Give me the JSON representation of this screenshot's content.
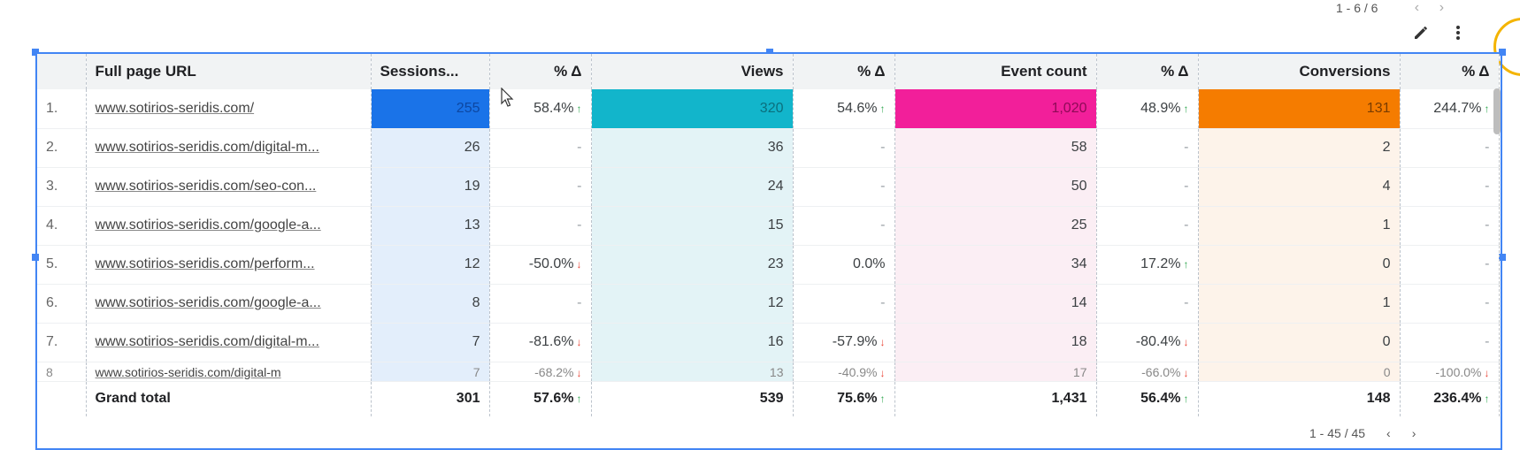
{
  "pagination_top": {
    "label": "1 - 6 / 6",
    "prev": "‹",
    "next": "›"
  },
  "toolbar": {
    "edit_icon": "pencil-icon",
    "menu_icon": "more-vert-icon"
  },
  "table": {
    "headers": {
      "url": "Full page URL",
      "sessions": "Sessions...",
      "sessions_delta": "% Δ",
      "views": "Views",
      "views_delta": "% Δ",
      "events": "Event count",
      "events_delta": "% Δ",
      "conversions": "Conversions",
      "conversions_delta": "% Δ"
    },
    "rows": [
      {
        "idx": "1.",
        "url": "www.sotirios-seridis.com/",
        "sessions": "255",
        "sessions_delta": "58.4%",
        "sessions_dir": "up",
        "views": "320",
        "views_delta": "54.6%",
        "views_dir": "up",
        "events": "1,020",
        "events_delta": "48.9%",
        "events_dir": "up",
        "conversions": "131",
        "conversions_delta": "244.7%",
        "conversions_dir": "up"
      },
      {
        "idx": "2.",
        "url": "www.sotirios-seridis.com/digital-m...",
        "sessions": "26",
        "sessions_delta": "-",
        "views": "36",
        "views_delta": "-",
        "events": "58",
        "events_delta": "-",
        "conversions": "2",
        "conversions_delta": "-"
      },
      {
        "idx": "3.",
        "url": "www.sotirios-seridis.com/seo-con...",
        "sessions": "19",
        "sessions_delta": "-",
        "views": "24",
        "views_delta": "-",
        "events": "50",
        "events_delta": "-",
        "conversions": "4",
        "conversions_delta": "-"
      },
      {
        "idx": "4.",
        "url": "www.sotirios-seridis.com/google-a...",
        "sessions": "13",
        "sessions_delta": "-",
        "views": "15",
        "views_delta": "-",
        "events": "25",
        "events_delta": "-",
        "conversions": "1",
        "conversions_delta": "-"
      },
      {
        "idx": "5.",
        "url": "www.sotirios-seridis.com/perform...",
        "sessions": "12",
        "sessions_delta": "-50.0%",
        "sessions_dir": "down",
        "views": "23",
        "views_delta": "0.0%",
        "events": "34",
        "events_delta": "17.2%",
        "events_dir": "up",
        "conversions": "0",
        "conversions_delta": "-"
      },
      {
        "idx": "6.",
        "url": "www.sotirios-seridis.com/google-a...",
        "sessions": "8",
        "sessions_delta": "-",
        "views": "12",
        "views_delta": "-",
        "events": "14",
        "events_delta": "-",
        "conversions": "1",
        "conversions_delta": "-"
      },
      {
        "idx": "7.",
        "url": "www.sotirios-seridis.com/digital-m...",
        "sessions": "7",
        "sessions_delta": "-81.6%",
        "sessions_dir": "down",
        "views": "16",
        "views_delta": "-57.9%",
        "views_dir": "down",
        "events": "18",
        "events_delta": "-80.4%",
        "events_dir": "down",
        "conversions": "0",
        "conversions_delta": "-"
      },
      {
        "idx": "8",
        "url": "www.sotirios-seridis.com/digital-m",
        "sessions": "7",
        "sessions_delta": "-68.2%",
        "sessions_dir": "down",
        "views": "13",
        "views_delta": "-40.9%",
        "views_dir": "down",
        "events": "17",
        "events_delta": "-66.0%",
        "events_dir": "down",
        "conversions": "0",
        "conversions_delta": "-100.0%",
        "conversions_dir": "down"
      }
    ],
    "total": {
      "label": "Grand total",
      "sessions": "301",
      "sessions_delta": "57.6%",
      "views": "539",
      "views_delta": "75.6%",
      "events": "1,431",
      "events_delta": "56.4%",
      "conversions": "148",
      "conversions_delta": "236.4%"
    }
  },
  "pagination_bottom": {
    "label": "1 - 45 / 45",
    "prev": "‹",
    "next": "›"
  },
  "colors": {
    "sessions": "#1a73e8",
    "views": "#12b5cb",
    "events": "#f21f9a",
    "conversions": "#f57c00",
    "selection": "#4285f4"
  }
}
